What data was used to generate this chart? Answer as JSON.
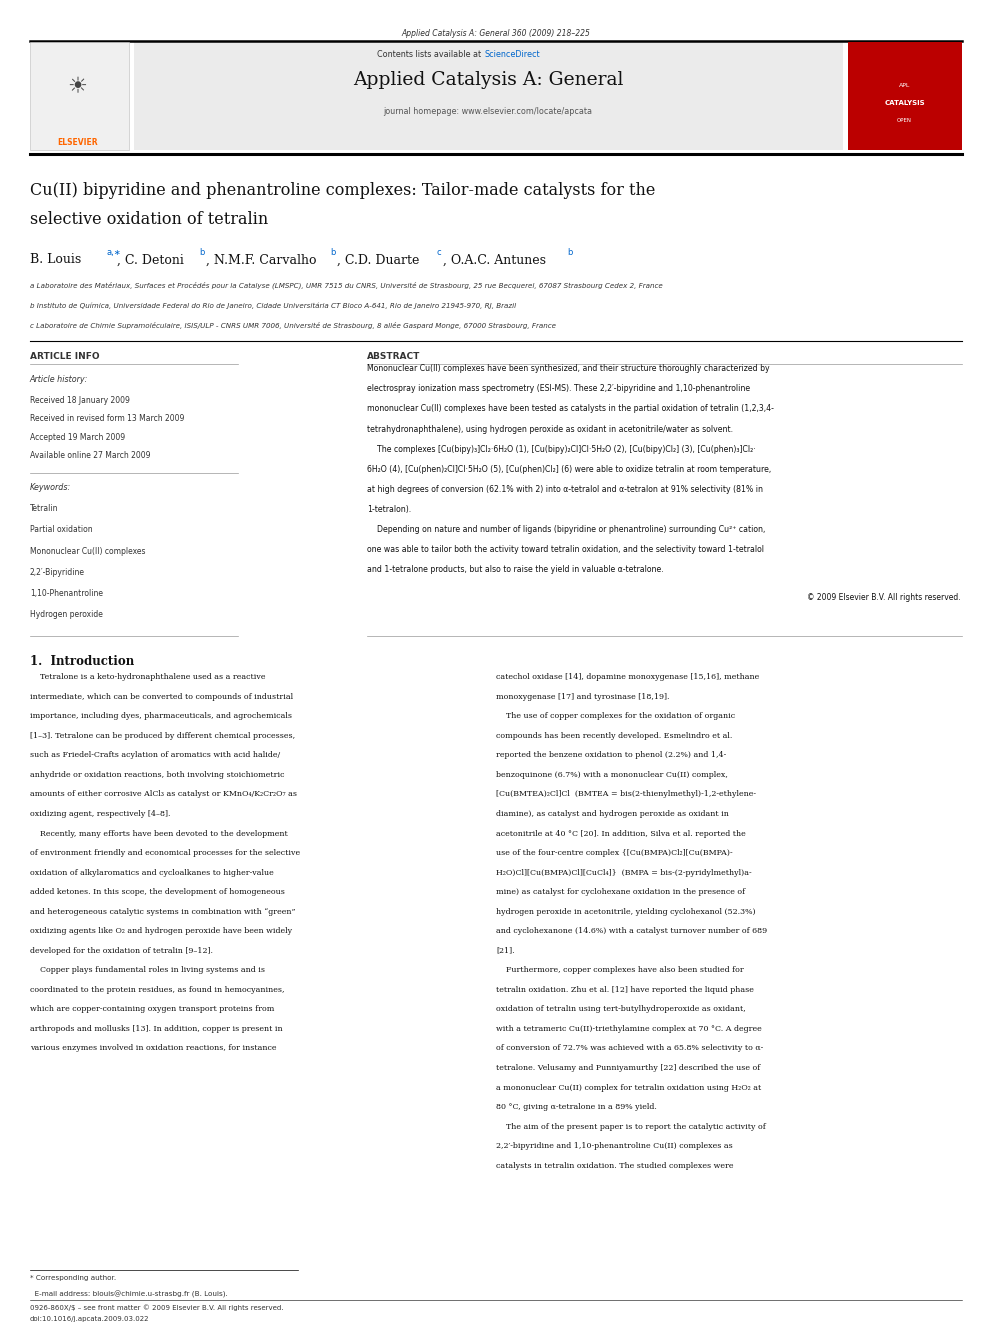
{
  "page_width": 9.92,
  "page_height": 13.23,
  "background_color": "#ffffff",
  "header_line_color": "#000000",
  "journal_header_bg": "#e8e8e8",
  "header_text_small": "Applied Catalysis A: General 360 (2009) 218–225",
  "contents_text": "Contents lists available at ",
  "sciencedirect_text": "ScienceDirect",
  "sciencedirect_color": "#0066cc",
  "journal_name": "Applied Catalysis A: General",
  "journal_homepage": "journal homepage: www.elsevier.com/locate/apcata",
  "article_title_line1": "Cu(II) bipyridine and phenantroline complexes: Tailor-made catalysts for the",
  "article_title_line2": "selective oxidation of tetralin",
  "affil_a": "a Laboratoire des Matériaux, Surfaces et Procédés pour la Catalyse (LMSPC), UMR 7515 du CNRS, Université de Strasbourg, 25 rue Becquerel, 67087 Strasbourg Cedex 2, France",
  "affil_b": "b Instituto de Química, Universidade Federal do Rio de Janeiro, Cidade Universitária CT Bloco A-641, Rio de Janeiro 21945-970, RJ, Brazil",
  "affil_c": "c Laboratoire de Chimie Supramoléculaire, ISIS/ULP - CNRS UMR 7006, Université de Strasbourg, 8 allée Gaspard Monge, 67000 Strasbourg, France",
  "section_article_info": "ARTICLE INFO",
  "section_abstract": "ABSTRACT",
  "article_history_label": "Article history:",
  "received1": "Received 18 January 2009",
  "received2": "Received in revised form 13 March 2009",
  "accepted": "Accepted 19 March 2009",
  "available": "Available online 27 March 2009",
  "keywords_label": "Keywords:",
  "keywords": [
    "Tetralin",
    "Partial oxidation",
    "Mononuclear Cu(II) complexes",
    "2,2′-Bipyridine",
    "1,10-Phenantroline",
    "Hydrogen peroxide"
  ],
  "intro_heading": "1.  Introduction",
  "elsevier_color": "#ff6600",
  "ref_color": "#0066cc",
  "abstract_lines": [
    "Mononuclear Cu(II) complexes have been synthesized, and their structure thoroughly characterized by",
    "electrospray ionization mass spectrometry (ESI-MS). These 2,2′-bipyridine and 1,10-phenantroline",
    "mononuclear Cu(II) complexes have been tested as catalysts in the partial oxidation of tetralin (1,2,3,4-",
    "tetrahydronaphthalene), using hydrogen peroxide as oxidant in acetonitrile/water as solvent.",
    "    The complexes [Cu(bipy)₃]Cl₂·6H₂O (1), [Cu(bipy)₂Cl]Cl·5H₂O (2), [Cu(bipy)Cl₂] (3), [Cu(phen)₃]Cl₂·",
    "6H₂O (4), [Cu(phen)₂Cl]Cl·5H₂O (5), [Cu(phen)Cl₂] (6) were able to oxidize tetralin at room temperature,",
    "at high degrees of conversion (62.1% with 2) into α-tetralol and α-tetralon at 91% selectivity (81% in",
    "1-tetralon).",
    "    Depending on nature and number of ligands (bipyridine or phenantroline) surrounding Cu²⁺ cation,",
    "one was able to tailor both the activity toward tetralin oxidation, and the selectivity toward 1-tetralol",
    "and 1-tetralone products, but also to raise the yield in valuable α-tetralone."
  ],
  "left_col_lines": [
    "    Tetralone is a keto-hydronaphthalene used as a reactive",
    "intermediate, which can be converted to compounds of industrial",
    "importance, including dyes, pharmaceuticals, and agrochemicals",
    "[1–3]. Tetralone can be produced by different chemical processes,",
    "such as Friedel-Crafts acylation of aromatics with acid halide/",
    "anhydride or oxidation reactions, both involving stoichiometric",
    "amounts of either corrosive AlCl₃ as catalyst or KMnO₄/K₂Cr₂O₇ as",
    "oxidizing agent, respectively [4–8].",
    "    Recently, many efforts have been devoted to the development",
    "of environment friendly and economical processes for the selective",
    "oxidation of alkylaromatics and cycloalkanes to higher-value",
    "added ketones. In this scope, the development of homogeneous",
    "and heterogeneous catalytic systems in combination with “green”",
    "oxidizing agents like O₂ and hydrogen peroxide have been widely",
    "developed for the oxidation of tetralin [9–12].",
    "    Copper plays fundamental roles in living systems and is",
    "coordinated to the protein residues, as found in hemocyanines,",
    "which are copper-containing oxygen transport proteins from",
    "arthropods and mollusks [13]. In addition, copper is present in",
    "various enzymes involved in oxidation reactions, for instance"
  ],
  "right_col_lines": [
    "catechol oxidase [14], dopamine monoxygenase [15,16], methane",
    "monoxygenase [17] and tyrosinase [18,19].",
    "    The use of copper complexes for the oxidation of organic",
    "compounds has been recently developed. Esmelindro et al.",
    "reported the benzene oxidation to phenol (2.2%) and 1,4-",
    "benzoquinone (6.7%) with a mononuclear Cu(II) complex,",
    "[Cu(BMTEA)₂Cl]Cl  (BMTEA = bis(2-thienylmethyl)-1,2-ethylene-",
    "diamine), as catalyst and hydrogen peroxide as oxidant in",
    "acetonitrile at 40 °C [20]. In addition, Silva et al. reported the",
    "use of the four-centre complex {[Cu(BMPA)Cl₂][Cu(BMPA)-",
    "H₂O)Cl][Cu(BMPA)Cl][CuCl₄]}  (BMPA = bis-(2-pyridylmethyl)a-",
    "mine) as catalyst for cyclohexane oxidation in the presence of",
    "hydrogen peroxide in acetonitrile, yielding cyclohexanol (52.3%)",
    "and cyclohexanone (14.6%) with a catalyst turnover number of 689",
    "[21].",
    "    Furthermore, copper complexes have also been studied for",
    "tetralin oxidation. Zhu et al. [12] have reported the liquid phase",
    "oxidation of tetralin using tert-butylhydroperoxide as oxidant,",
    "with a tetrameric Cu(II)-triethylamine complex at 70 °C. A degree",
    "of conversion of 72.7% was achieved with a 65.8% selectivity to α-",
    "tetralone. Velusamy and Punniyamurthy [22] described the use of",
    "a mononuclear Cu(II) complex for tetralin oxidation using H₂O₂ at",
    "80 °C, giving α-tetralone in a 89% yield.",
    "    The aim of the present paper is to report the catalytic activity of",
    "2,2′-bipyridine and 1,10-phenantroline Cu(II) complexes as",
    "catalysts in tetralin oxidation. The studied complexes were"
  ]
}
